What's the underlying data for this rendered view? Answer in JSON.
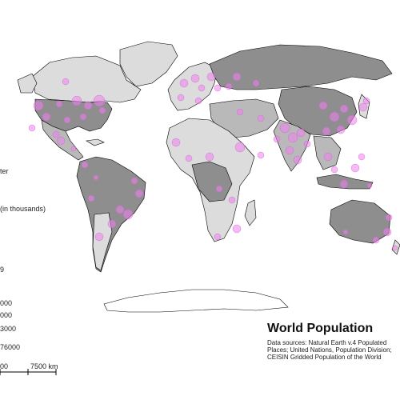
{
  "title": "World Population",
  "sources": "Data sources: Natural Earth v.4 Populated Places; United Nations, Population Division; CEISIN Gridded Population of the World",
  "legend": {
    "density_header_fragment": "ter",
    "population_header": "(in thousands)",
    "class_labels": [
      "9",
      "000",
      "000",
      "3000",
      "76000"
    ]
  },
  "scale_bar": {
    "label_left": "00",
    "label_right": "7500 km"
  },
  "colors": {
    "ocean": "#ffffff",
    "land_light": "#dcdcdc",
    "land_mid": "#b9b9b9",
    "land_dark": "#8e8e8e",
    "border": "#000000",
    "city": "#ee82ee"
  }
}
